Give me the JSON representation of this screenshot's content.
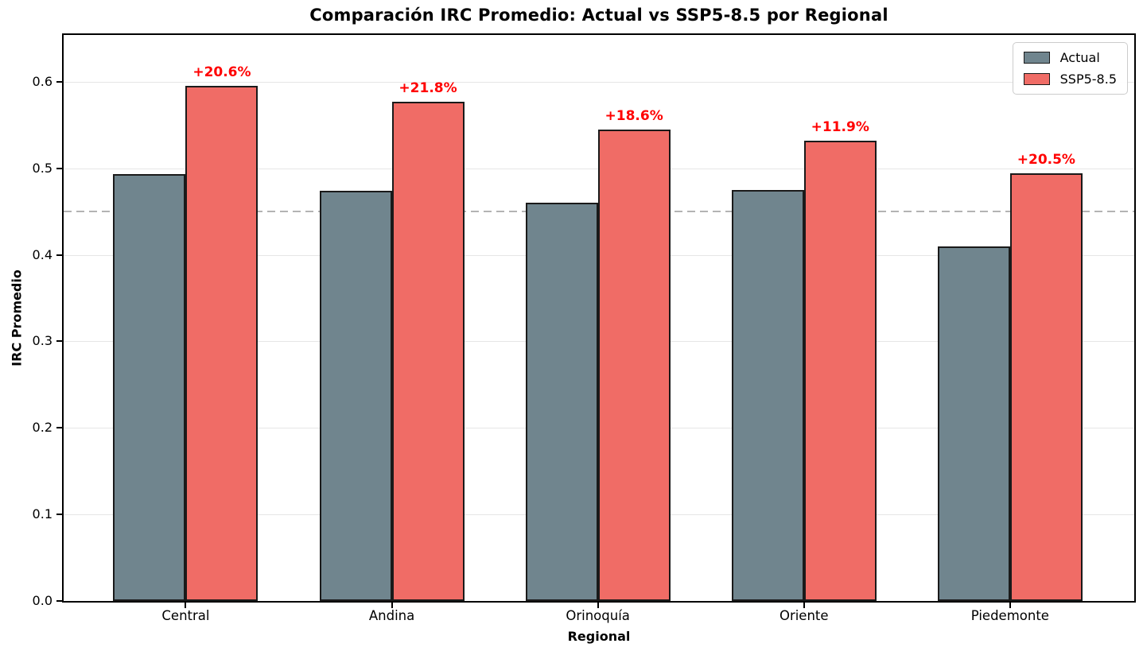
{
  "chart_data": {
    "type": "bar",
    "title": "Comparación IRC Promedio: Actual vs SSP5-8.5 por Regional",
    "xlabel": "Regional",
    "ylabel": "IRC Promedio",
    "categories": [
      "Central",
      "Andina",
      "Orinoquía",
      "Oriente",
      "Piedemonte"
    ],
    "series": [
      {
        "name": "Actual",
        "color": "#70858e",
        "values": [
          0.493,
          0.474,
          0.46,
          0.475,
          0.41
        ]
      },
      {
        "name": "SSP5-8.5",
        "color": "#f06c66",
        "values": [
          0.595,
          0.577,
          0.545,
          0.532,
          0.494
        ]
      }
    ],
    "annotations": [
      "+20.6%",
      "+21.8%",
      "+18.6%",
      "+11.9%",
      "+20.5%"
    ],
    "annotation_color": "#ff0000",
    "yticks": [
      0.0,
      0.1,
      0.2,
      0.3,
      0.4,
      0.5,
      0.6
    ],
    "ylim": [
      0,
      0.654
    ],
    "ref_line": 0.45,
    "ref_line_color": "#b3b3b3",
    "grid": true,
    "grid_color": "#e6e6e6",
    "legend_position": "top-right",
    "bar_edge_color": "#1a1a1a"
  }
}
